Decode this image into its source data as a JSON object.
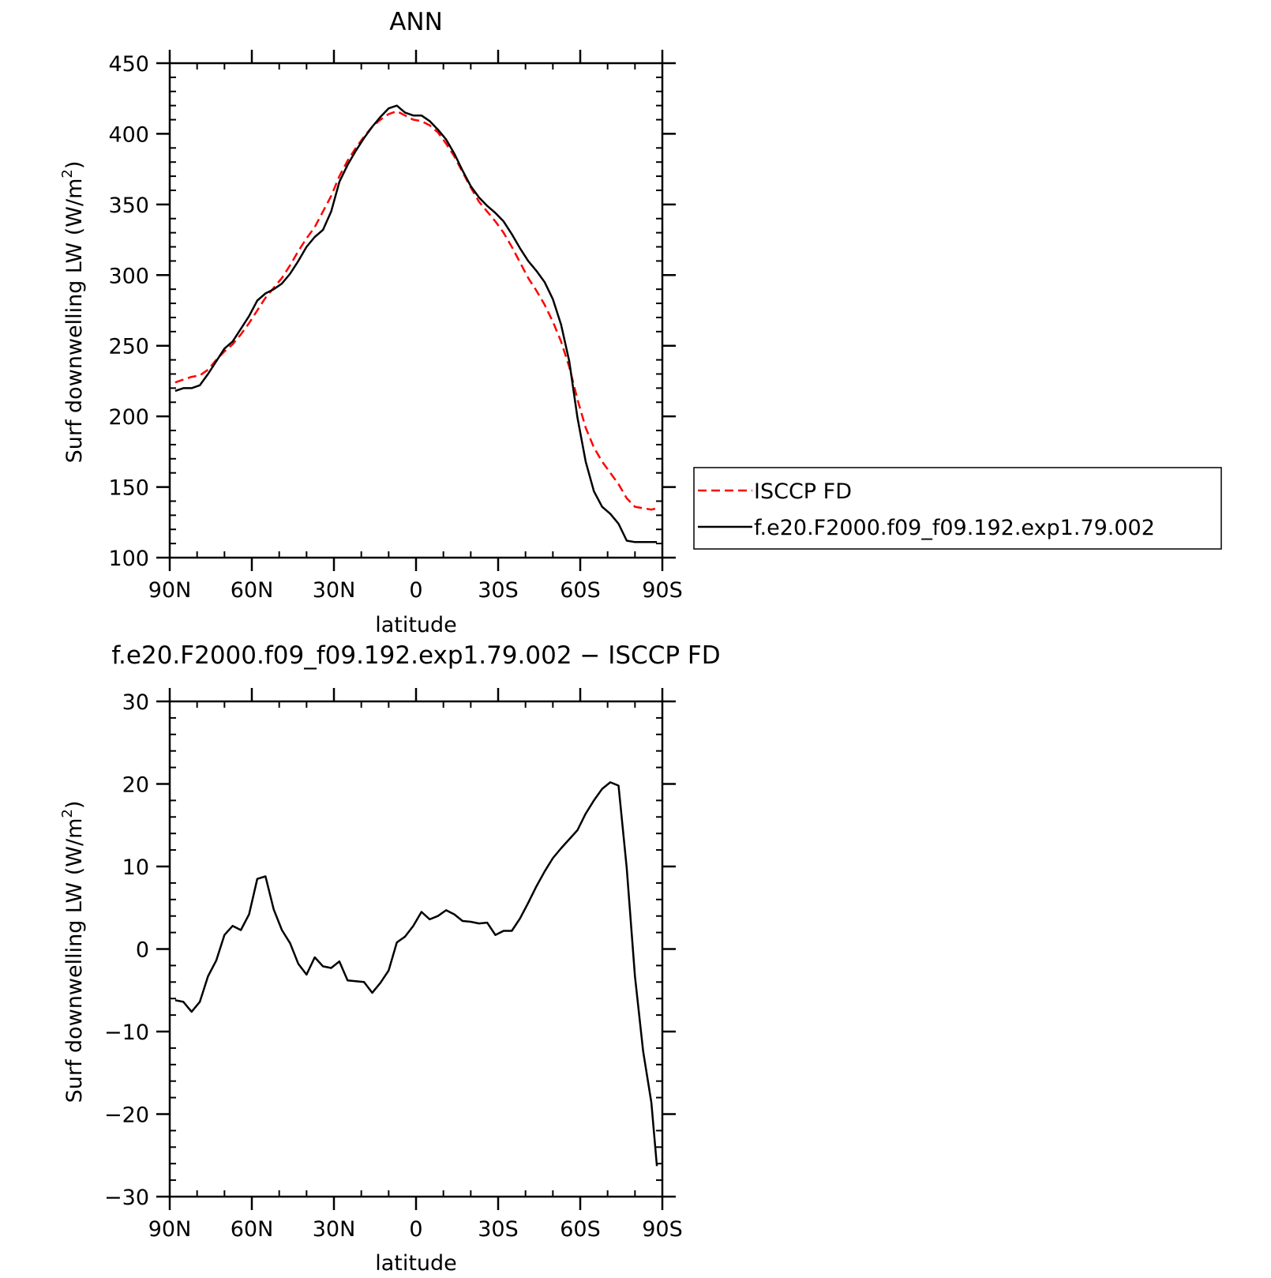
{
  "chart_data": [
    {
      "type": "line",
      "title": "ANN",
      "xlabel": "latitude",
      "ylabel_main": "Surf downwelling LW (W/m",
      "ylabel_sup": "2",
      "ylabel_close": ")",
      "xlim": [
        90,
        -90
      ],
      "ylim": [
        100,
        450
      ],
      "xticks": [
        90,
        60,
        30,
        0,
        -30,
        -60,
        -90
      ],
      "xtick_labels": [
        "90N",
        "60N",
        "30N",
        "0",
        "30S",
        "60S",
        "90S"
      ],
      "yticks": [
        100,
        150,
        200,
        250,
        300,
        350,
        400,
        450
      ],
      "ytick_labels": [
        "100",
        "150",
        "200",
        "250",
        "300",
        "350",
        "400",
        "450"
      ],
      "legend": "right",
      "grid": false,
      "series": [
        {
          "name": "ISCCP FD",
          "color": "#ff0000",
          "dash": "dashed",
          "x": [
            88,
            85,
            82,
            79,
            76,
            73,
            70,
            67,
            64,
            61,
            58,
            55,
            52,
            49,
            46,
            43,
            40,
            37,
            34,
            31,
            28,
            25,
            22,
            19,
            16,
            13,
            10,
            7,
            4,
            1,
            -2,
            -5,
            -8,
            -11,
            -14,
            -17,
            -20,
            -23,
            -26,
            -29,
            -32,
            -35,
            -38,
            -41,
            -44,
            -47,
            -50,
            -53,
            -56,
            -59,
            -62,
            -65,
            -68,
            -71,
            -74,
            -77,
            -80,
            -83,
            -86,
            -88
          ],
          "y": [
            224,
            226,
            228,
            229,
            233,
            240,
            246,
            251,
            258,
            266,
            275,
            284,
            291,
            298,
            307,
            317,
            326,
            334,
            345,
            356,
            370,
            381,
            390,
            398,
            405,
            410,
            414,
            416,
            413,
            410,
            409,
            406,
            401,
            393,
            384,
            373,
            362,
            352,
            345,
            338,
            330,
            320,
            309,
            298,
            289,
            279,
            267,
            253,
            235,
            212,
            192,
            178,
            168,
            160,
            152,
            142,
            136,
            135,
            134,
            135
          ]
        },
        {
          "name": "f.e20.F2000.f09_f09.192.exp1.79.002",
          "color": "#000000",
          "dash": "solid",
          "x": [
            88,
            85,
            82,
            79,
            76,
            73,
            70,
            67,
            64,
            61,
            58,
            55,
            52,
            49,
            46,
            43,
            40,
            37,
            34,
            31,
            28,
            25,
            22,
            19,
            16,
            13,
            10,
            7,
            4,
            1,
            -2,
            -5,
            -8,
            -11,
            -14,
            -17,
            -20,
            -23,
            -26,
            -29,
            -32,
            -35,
            -38,
            -41,
            -44,
            -47,
            -50,
            -53,
            -56,
            -59,
            -62,
            -65,
            -68,
            -71,
            -74,
            -77,
            -80,
            -83,
            -86,
            -88
          ],
          "y": [
            218,
            220,
            220,
            222,
            230,
            239,
            248,
            253,
            262,
            271,
            282,
            287,
            290,
            294,
            301,
            310,
            320,
            327,
            332,
            345,
            366,
            378,
            388,
            397,
            405,
            412,
            418,
            420,
            415,
            413,
            413,
            409,
            403,
            396,
            386,
            374,
            363,
            355,
            349,
            344,
            338,
            329,
            319,
            310,
            303,
            295,
            283,
            265,
            239,
            199,
            168,
            147,
            136,
            131,
            124,
            112,
            111,
            111,
            111,
            111
          ]
        }
      ]
    },
    {
      "type": "line",
      "title": "f.e20.F2000.f09_f09.192.exp1.79.002 − ISCCP FD",
      "xlabel": "latitude",
      "ylabel_main": "Surf downwelling LW (W/m",
      "ylabel_sup": "2",
      "ylabel_close": ")",
      "xlim": [
        90,
        -90
      ],
      "ylim": [
        -30,
        30
      ],
      "xticks": [
        90,
        60,
        30,
        0,
        -30,
        -60,
        -90
      ],
      "xtick_labels": [
        "90N",
        "60N",
        "30N",
        "0",
        "30S",
        "60S",
        "90S"
      ],
      "yticks": [
        -30,
        -20,
        -10,
        0,
        10,
        20,
        30
      ],
      "ytick_labels": [
        "−30",
        "−20",
        "−10",
        "0",
        "10",
        "20",
        "30"
      ],
      "grid": false,
      "series": [
        {
          "color": "#000000",
          "dash": "solid",
          "x": [
            88,
            85,
            82,
            79,
            76,
            73,
            70,
            67,
            64,
            61,
            58,
            55,
            52,
            49,
            46,
            43,
            40,
            37,
            34,
            31,
            28,
            25,
            22,
            19,
            16,
            13,
            10,
            7,
            4,
            1,
            -2,
            -5,
            -8,
            -11,
            -14,
            -17,
            -20,
            -23,
            -26,
            -29,
            -32,
            -35,
            -38,
            -41,
            -44,
            -47,
            -50,
            -53,
            -56,
            -59,
            -62,
            -65,
            -68,
            -71,
            -74,
            -77,
            -80,
            -83,
            -86,
            -88
          ],
          "y": [
            -6.2,
            -6.4,
            -7.6,
            -6.4,
            -3.3,
            -1.4,
            1.7,
            2.8,
            2.3,
            4.2,
            8.5,
            8.8,
            4.8,
            2.3,
            0.7,
            -1.8,
            -3.1,
            -1.0,
            -2.1,
            -2.3,
            -1.5,
            -3.8,
            -3.9,
            -4.0,
            -5.3,
            -4.1,
            -2.6,
            0.8,
            1.5,
            2.8,
            4.5,
            3.6,
            4.0,
            4.7,
            4.2,
            3.4,
            3.3,
            3.1,
            3.2,
            1.7,
            2.2,
            2.2,
            3.7,
            5.6,
            7.6,
            9.4,
            11.0,
            12.2,
            13.3,
            14.4,
            16.4,
            18.0,
            19.4,
            20.2,
            19.8,
            9.8,
            -3.3,
            -12.4,
            -18.6,
            -26.3
          ]
        }
      ]
    }
  ],
  "legend": {
    "entries": [
      {
        "label": "ISCCP FD",
        "color": "#ff0000",
        "dash": "dashed"
      },
      {
        "label": "f.e20.F2000.f09_f09.192.exp1.79.002",
        "color": "#000000",
        "dash": "solid"
      }
    ]
  }
}
